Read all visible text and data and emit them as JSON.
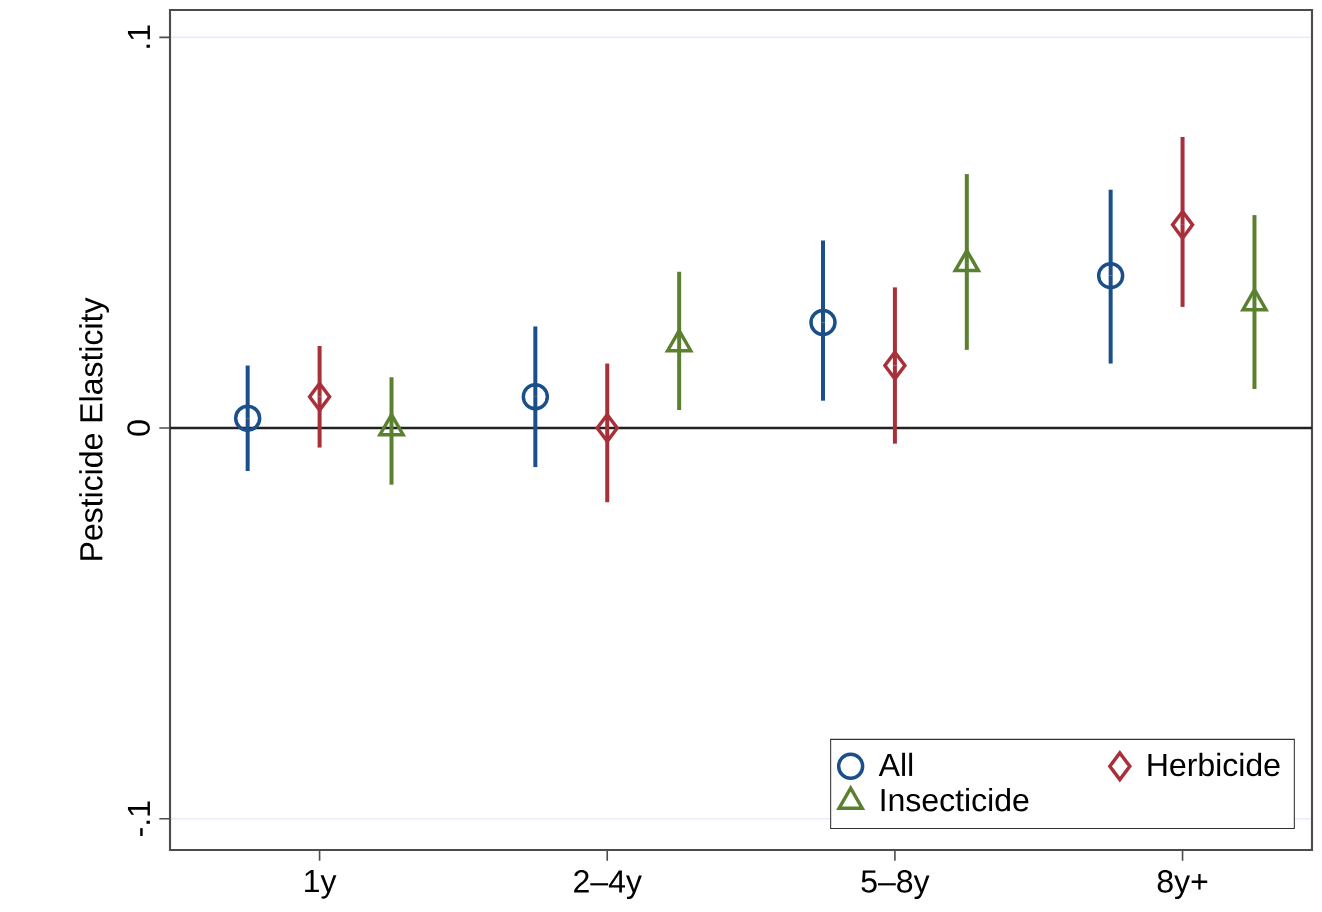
{
  "chart_data": {
    "type": "scatter",
    "ylabel": "Pesticide Elasticity",
    "categories": [
      "1y",
      "2–4y",
      "5–8y",
      "8y+"
    ],
    "ylim": [
      -0.108,
      0.107
    ],
    "yticks": [
      {
        "value": -0.1,
        "label": "-.1"
      },
      {
        "value": 0,
        "label": "0"
      },
      {
        "value": 0.1,
        "label": ".1"
      }
    ],
    "grid": "y",
    "legend": "bottom right",
    "ref_lines": [
      {
        "axis": "y",
        "value": 0,
        "color": "#222222"
      }
    ],
    "series": [
      {
        "name": "All",
        "color": "#1a4f8a",
        "marker": "circle",
        "values": [
          0.0025,
          0.008,
          0.027,
          0.039
        ],
        "errors": [
          [
            -0.011,
            0.016
          ],
          [
            -0.01,
            0.026
          ],
          [
            0.007,
            0.048
          ],
          [
            0.0165,
            0.061
          ]
        ]
      },
      {
        "name": "Herbicide",
        "color": "#a8303a",
        "marker": "diamond",
        "values": [
          0.008,
          0.0,
          0.016,
          0.052
        ],
        "errors": [
          [
            -0.005,
            0.021
          ],
          [
            -0.019,
            0.0165
          ],
          [
            -0.004,
            0.036
          ],
          [
            0.031,
            0.0745
          ]
        ]
      },
      {
        "name": "Insecticide",
        "color": "#5a8030",
        "marker": "triangle",
        "values": [
          0.0,
          0.0215,
          0.042,
          0.032
        ],
        "errors": [
          [
            -0.0145,
            0.013
          ],
          [
            0.0046,
            0.04
          ],
          [
            0.02,
            0.065
          ],
          [
            0.01,
            0.0545
          ]
        ]
      }
    ]
  }
}
